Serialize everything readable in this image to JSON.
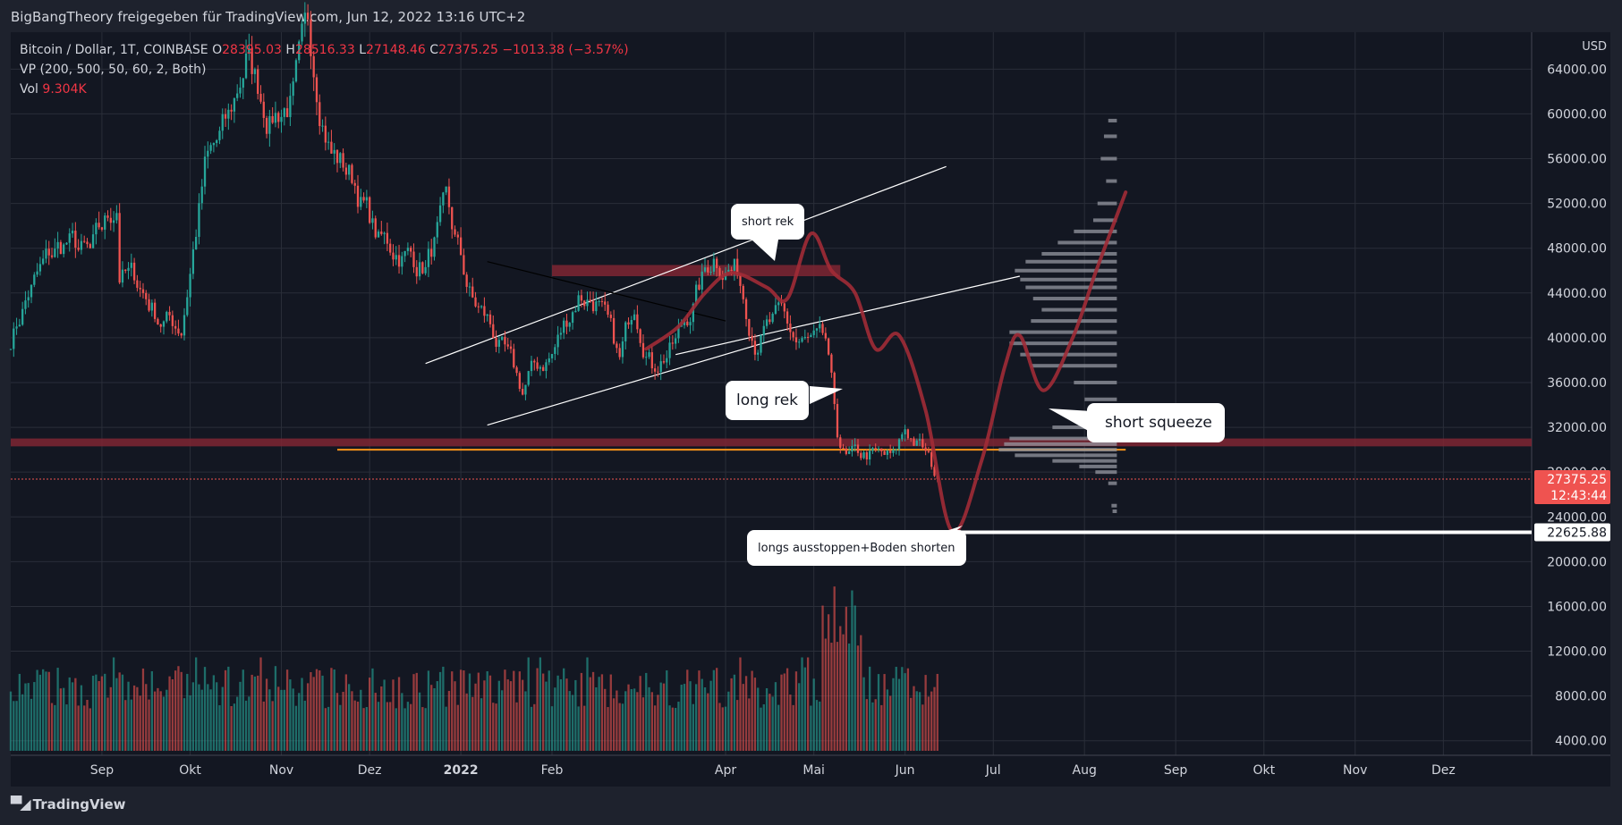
{
  "header": {
    "publisher": "BigBangTheory freigegeben für TradingView.com, Jun 12, 2022 13:16 UTC+2"
  },
  "legend": {
    "symbol": "Bitcoin / Dollar, 1T, COINBASE",
    "open_label": "O",
    "open": "28395.03",
    "high_label": "H",
    "high": "28516.33",
    "low_label": "L",
    "low": "27148.46",
    "close_label": "C",
    "close": "27375.25",
    "change": "−1013.38 (−3.57%)",
    "indicator": "VP (200, 500, 50, 60, 2, Both)",
    "vol_label": "Vol",
    "vol": "9.304K"
  },
  "footer": {
    "brand": "TradingView"
  },
  "callouts": {
    "short_rek": "short rek",
    "long_rek": "long rek",
    "short_squeeze": "short squeeze",
    "longs_ausstoppen": "longs ausstoppen+Boden shorten"
  },
  "colors": {
    "up": "#26a69a",
    "down": "#ef5350",
    "background": "#131722",
    "resistance_zone": "#7f2632",
    "support_line": "#f7931a",
    "projection": "#a12b36",
    "volume_profile": "#9598a1"
  },
  "chart_data": {
    "type": "candlestick",
    "currency": "USD",
    "x_axis_labels": [
      "Sep",
      "Okt",
      "Nov",
      "Dez",
      "2022",
      "Feb",
      "Apr",
      "Mai",
      "Jun",
      "Jul",
      "Aug",
      "Sep",
      "Okt",
      "Nov",
      "Dez"
    ],
    "y_ticks": [
      64000,
      60000,
      56000,
      52000,
      48000,
      44000,
      40000,
      36000,
      32000,
      28000,
      24000,
      20000,
      16000,
      12000,
      8000,
      4000
    ],
    "y_tick_labels": [
      "64000.00",
      "60000.00",
      "56000.00",
      "52000.00",
      "48000.00",
      "44000.00",
      "40000.00",
      "36000.00",
      "32000.00",
      "28000.00",
      "24000.00",
      "20000.00",
      "16000.00",
      "12000.00",
      "8000.00",
      "4000.00"
    ],
    "ylim": [
      2700,
      67300
    ],
    "date_range": [
      "2021-08-01",
      "2022-12-31"
    ],
    "current_price": {
      "value": 27375.25,
      "label": "27375.25",
      "countdown": "12:43:44"
    },
    "target_price": {
      "value": 22625.88,
      "label": "22625.88"
    },
    "price_anchors": [
      [
        "2021-08-01",
        40000
      ],
      [
        "2021-08-07",
        44000
      ],
      [
        "2021-08-14",
        47000
      ],
      [
        "2021-08-20",
        48500
      ],
      [
        "2021-08-28",
        47000
      ],
      [
        "2021-09-06",
        52000
      ],
      [
        "2021-09-07",
        46000
      ],
      [
        "2021-09-13",
        45000
      ],
      [
        "2021-09-20",
        42000
      ],
      [
        "2021-09-28",
        41000
      ],
      [
        "2021-10-06",
        55000
      ],
      [
        "2021-10-14",
        59000
      ],
      [
        "2021-10-20",
        65000
      ],
      [
        "2021-10-28",
        60000
      ],
      [
        "2021-11-05",
        61500
      ],
      [
        "2021-11-10",
        67000
      ],
      [
        "2021-11-18",
        57000
      ],
      [
        "2021-11-26",
        54000
      ],
      [
        "2021-12-04",
        48500
      ],
      [
        "2021-12-10",
        48000
      ],
      [
        "2021-12-20",
        46500
      ],
      [
        "2021-12-27",
        51000
      ],
      [
        "2022-01-05",
        43000
      ],
      [
        "2022-01-10",
        41500
      ],
      [
        "2022-01-22",
        35000
      ],
      [
        "2022-01-24",
        36500
      ],
      [
        "2022-02-01",
        38500
      ],
      [
        "2022-02-10",
        44000
      ],
      [
        "2022-02-16",
        43500
      ],
      [
        "2022-02-24",
        37500
      ],
      [
        "2022-03-01",
        43500
      ],
      [
        "2022-03-07",
        38000
      ],
      [
        "2022-03-15",
        39500
      ],
      [
        "2022-03-28",
        47500
      ],
      [
        "2022-04-05",
        46000
      ],
      [
        "2022-04-11",
        40500
      ],
      [
        "2022-04-20",
        41500
      ],
      [
        "2022-04-25",
        39500
      ],
      [
        "2022-05-05",
        39000
      ],
      [
        "2022-05-09",
        31000
      ],
      [
        "2022-05-12",
        29000
      ],
      [
        "2022-05-20",
        29500
      ],
      [
        "2022-05-28",
        29000
      ],
      [
        "2022-06-01",
        31800
      ],
      [
        "2022-06-07",
        30000
      ],
      [
        "2022-06-12",
        27375
      ]
    ],
    "annotations": {
      "resistance_zone": [
        45500,
        46500
      ],
      "support_zone": [
        30300,
        31000
      ],
      "support_line": 30000,
      "upper_channel": [
        [
          "2021-12-20",
          37700
        ],
        [
          "2022-06-15",
          55300
        ]
      ],
      "middle_channel": [
        [
          "2022-03-15",
          38500
        ],
        [
          "2022-07-10",
          45500
        ]
      ],
      "lower_channel": [
        [
          "2022-01-10",
          32200
        ],
        [
          "2022-04-20",
          40000
        ]
      ],
      "downtrend_line": [
        [
          "2022-01-10",
          46800
        ],
        [
          "2022-04-01",
          41500
        ]
      ],
      "projection_path": [
        [
          "2022-03-05",
          39000
        ],
        [
          "2022-03-16",
          41000
        ],
        [
          "2022-03-25",
          44000
        ],
        [
          "2022-04-03",
          45800
        ],
        [
          "2022-04-15",
          44500
        ],
        [
          "2022-04-22",
          43500
        ],
        [
          "2022-04-30",
          49300
        ],
        [
          "2022-05-07",
          46000
        ],
        [
          "2022-05-15",
          44000
        ],
        [
          "2022-05-22",
          39000
        ],
        [
          "2022-05-30",
          40200
        ],
        [
          "2022-06-08",
          33500
        ],
        [
          "2022-06-17",
          22700
        ],
        [
          "2022-06-27",
          29000
        ],
        [
          "2022-07-05",
          37500
        ],
        [
          "2022-07-10",
          40200
        ],
        [
          "2022-07-18",
          35300
        ],
        [
          "2022-07-28",
          40000
        ],
        [
          "2022-08-05",
          46000
        ],
        [
          "2022-08-15",
          53000
        ]
      ]
    },
    "volume_profile": [
      [
        59400,
        0.08
      ],
      [
        58000,
        0.12
      ],
      [
        56000,
        0.15
      ],
      [
        54000,
        0.1
      ],
      [
        52000,
        0.18
      ],
      [
        50500,
        0.22
      ],
      [
        49500,
        0.4
      ],
      [
        48500,
        0.55
      ],
      [
        47500,
        0.7
      ],
      [
        46800,
        0.85
      ],
      [
        46000,
        0.95
      ],
      [
        45200,
        0.9
      ],
      [
        44500,
        0.85
      ],
      [
        43500,
        0.78
      ],
      [
        42500,
        0.7
      ],
      [
        41500,
        0.8
      ],
      [
        40500,
        1.0
      ],
      [
        39500,
        1.0
      ],
      [
        38500,
        0.9
      ],
      [
        37500,
        0.8
      ],
      [
        36000,
        0.4
      ],
      [
        34500,
        0.3
      ],
      [
        33000,
        0.4
      ],
      [
        32000,
        0.6
      ],
      [
        31000,
        1.0
      ],
      [
        30500,
        1.05
      ],
      [
        30000,
        1.1
      ],
      [
        29500,
        0.95
      ],
      [
        29000,
        0.6
      ],
      [
        28500,
        0.35
      ],
      [
        28000,
        0.2
      ],
      [
        27000,
        0.08
      ],
      [
        25000,
        0.05
      ],
      [
        24500,
        0.04
      ]
    ]
  }
}
